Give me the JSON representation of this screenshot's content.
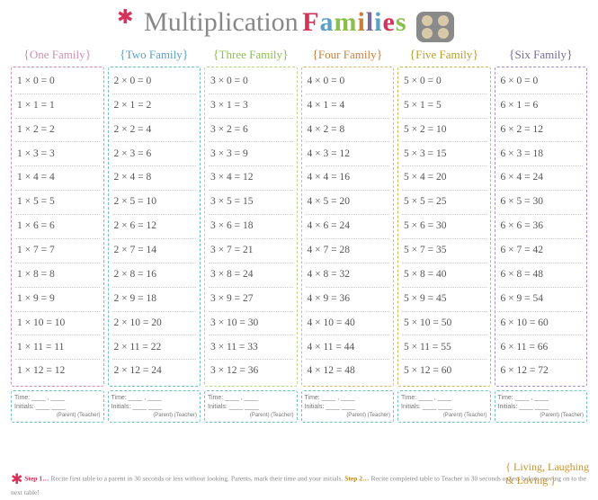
{
  "header": {
    "cursive": "Multiplication",
    "word": "Families",
    "letter_colors": [
      "#d6335a",
      "#5aa0c8",
      "#8bbf4d",
      "#c97f3a",
      "#7a6a9a",
      "#5aa0c8",
      "#d6335a",
      "#8bbf4d"
    ]
  },
  "columns": [
    {
      "label": "One Family",
      "color": "#d08fb0",
      "header_color": "#d08fb0",
      "facts": [
        "1 × 0 = 0",
        "1 × 1 = 1",
        "1 × 2 = 2",
        "1 × 3 = 3",
        "1 × 4 = 4",
        "1 × 5 = 5",
        "1 × 6 = 6",
        "1 × 7 = 7",
        "1 × 8 = 8",
        "1 × 9 = 9",
        "1 × 10 = 10",
        "1 × 11 = 11",
        "1 × 12 = 12"
      ]
    },
    {
      "label": "Two Family",
      "color": "#6ec1c9",
      "header_color": "#5aa0c8",
      "facts": [
        "2 × 0 = 0",
        "2 × 1 = 2",
        "2 × 2 = 4",
        "2 × 3 = 6",
        "2 × 4 = 8",
        "2 × 5 = 10",
        "2 × 6 = 12",
        "2 × 7 = 14",
        "2 × 8 = 16",
        "2 × 9 = 18",
        "2 × 10 = 20",
        "2 × 11 = 22",
        "2 × 12 = 24"
      ]
    },
    {
      "label": "Three Family",
      "color": "#b7d98a",
      "header_color": "#8bbf4d",
      "facts": [
        "3 × 0 = 0",
        "3 × 1 = 3",
        "3 × 2 = 6",
        "3 × 3 = 9",
        "3 × 4 = 12",
        "3 × 5 = 15",
        "3 × 6 = 18",
        "3 × 7 = 21",
        "3 × 8 = 24",
        "3 × 9 = 27",
        "3 × 10 = 30",
        "3 × 11 = 33",
        "3 × 12 = 36"
      ]
    },
    {
      "label": "Four Family",
      "color": "#e3b86f",
      "header_color": "#c97f3a",
      "facts": [
        "4 × 0 = 0",
        "4 × 1 = 4",
        "4 × 2 = 8",
        "4 × 3 = 12",
        "4 × 4 = 16",
        "4 × 5 = 20",
        "4 × 6 = 24",
        "4 × 7 = 28",
        "4 × 8 = 32",
        "4 × 9 = 36",
        "4 × 10 = 40",
        "4 × 11 = 44",
        "4 × 12 = 48"
      ]
    },
    {
      "label": "Five Family",
      "color": "#d0b84f",
      "header_color": "#b5a030",
      "facts": [
        "5 × 0 = 0",
        "5 × 1 = 5",
        "5 × 2 = 10",
        "5 × 3 = 15",
        "5 × 4 = 20",
        "5 × 5 = 25",
        "5 × 6 = 30",
        "5 × 7 = 35",
        "5 × 8 = 40",
        "5 × 9 = 45",
        "5 × 10 = 50",
        "5 × 11 = 55",
        "5 × 12 = 60"
      ]
    },
    {
      "label": "Six Family",
      "color": "#a98fc7",
      "header_color": "#7a6a9a",
      "facts": [
        "6 × 0 = 0",
        "6 × 1 = 6",
        "6 × 2 = 12",
        "6 × 3 = 18",
        "6 × 4 = 24",
        "6 × 5 = 30",
        "6 × 6 = 36",
        "6 × 7 = 42",
        "6 × 8 = 48",
        "6 × 9 = 54",
        "6 × 10 = 60",
        "6 × 11 = 66",
        "6 × 12 = 72"
      ]
    }
  ],
  "signoff": {
    "time_label": "Time: ____ , ____",
    "initials_label": "Initials: ____ ____",
    "sub": "(Parent) (Teacher)"
  },
  "footer": {
    "step1_label": "Step 1…",
    "step1_text": " Recite first table to a parent in 30 seconds or less without looking. Parents, mark their time and your initials. ",
    "step2_label": "Step 2…",
    "step2_text": " Recite completed table to Teacher in 30 seconds or less before moving on to the next table!"
  },
  "logo": {
    "line1": "Living",
    "line2": "Laughing",
    "line3": "& Loving"
  }
}
